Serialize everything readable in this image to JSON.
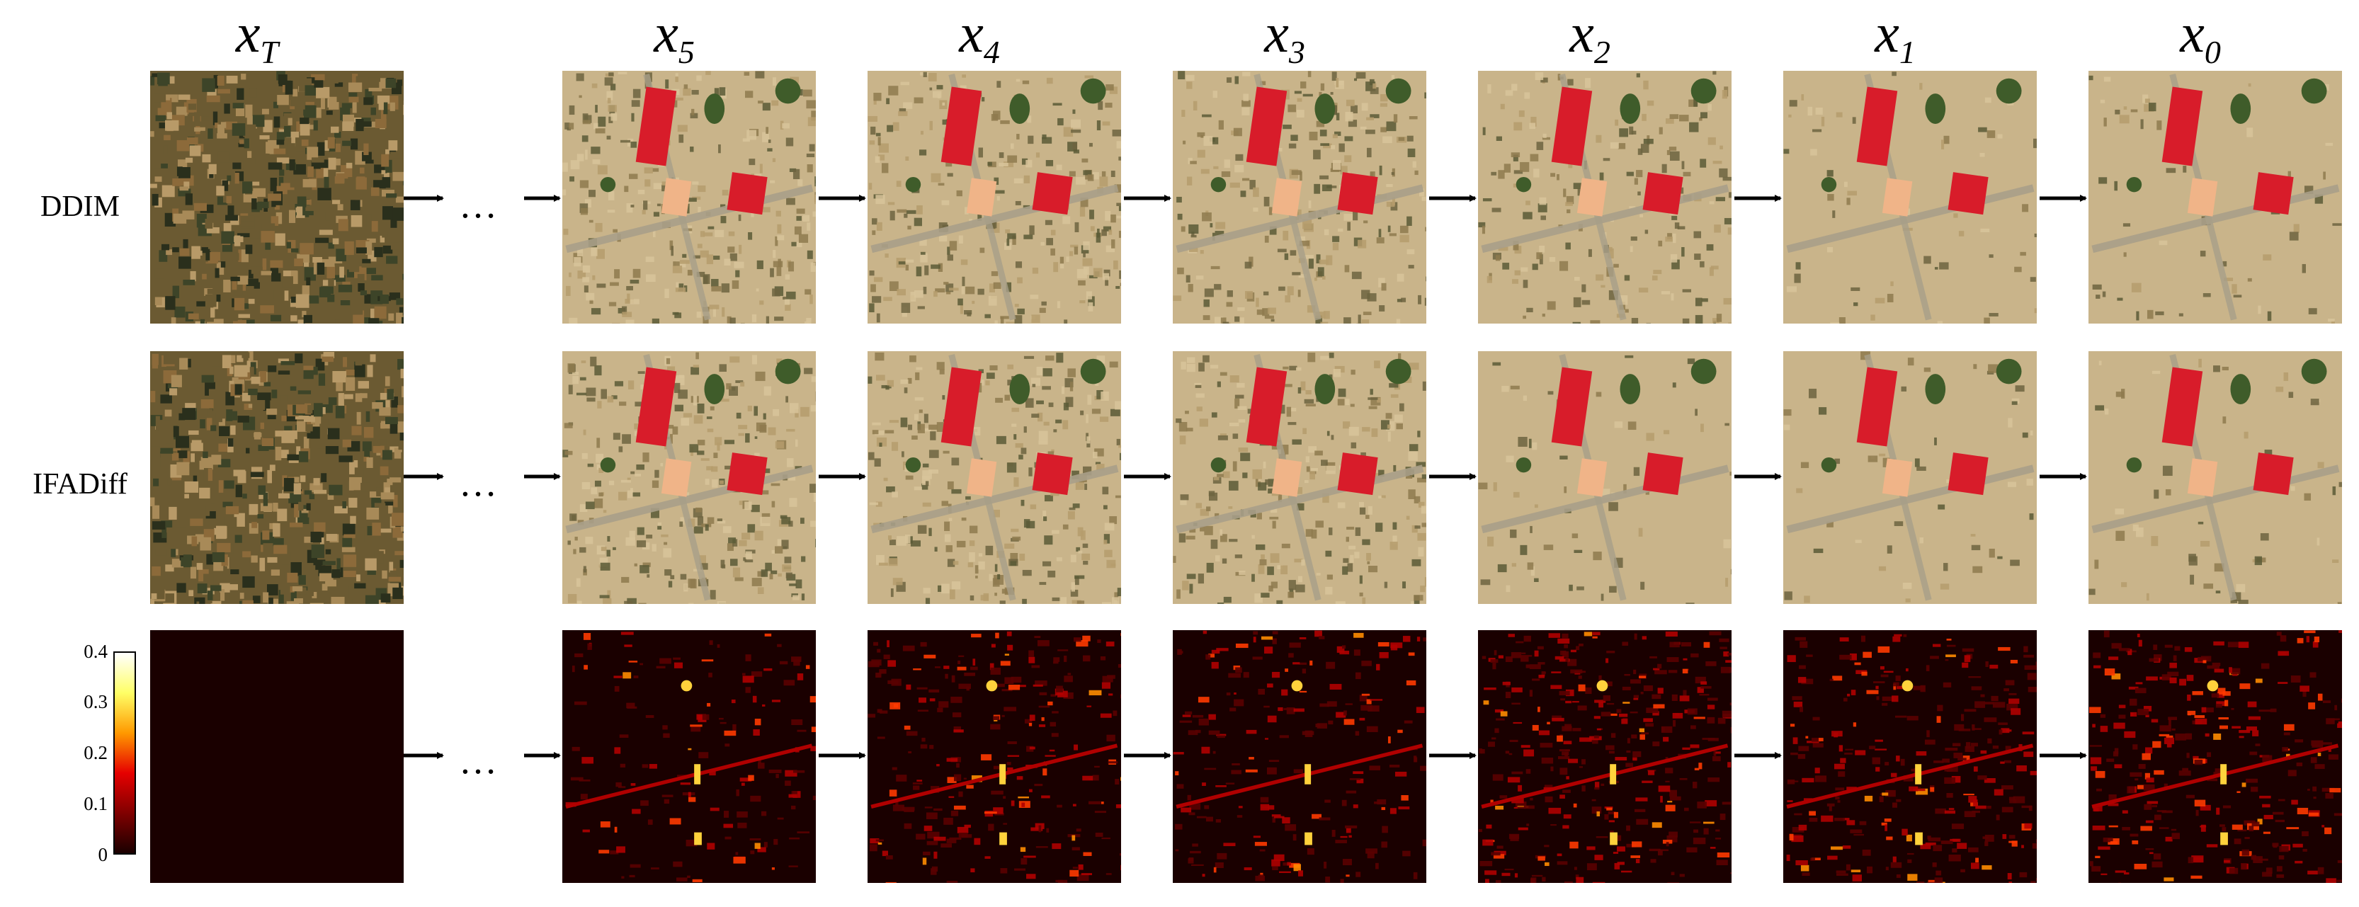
{
  "columns": [
    {
      "base": "x",
      "sub": "T"
    },
    {
      "base": "x",
      "sub": "5"
    },
    {
      "base": "x",
      "sub": "4"
    },
    {
      "base": "x",
      "sub": "3"
    },
    {
      "base": "x",
      "sub": "2"
    },
    {
      "base": "x",
      "sub": "1"
    },
    {
      "base": "x",
      "sub": "0"
    }
  ],
  "rows": [
    {
      "label": "DDIM"
    },
    {
      "label": "IFADiff"
    },
    {
      "label": ""
    }
  ],
  "ellipsis": "…",
  "colorbar": {
    "ticks": [
      "0.4",
      "0.3",
      "0.2",
      "0.1",
      "0"
    ],
    "colors": [
      "#ffffff",
      "#ffff66",
      "#ff9900",
      "#e60000",
      "#800000",
      "#1a0000"
    ]
  },
  "colors": {
    "noise_a": "#6b5a32",
    "noise_b": "#3d4428",
    "noise_c": "#a88a58",
    "ground": "#c9b48a",
    "roof_red": "#d81c2a",
    "roof_peach": "#f0b488",
    "tree": "#3f5c2a",
    "heat_bg": "#1a0000",
    "heat_mid": "#b00000",
    "heat_hot": "#ffd23c"
  }
}
